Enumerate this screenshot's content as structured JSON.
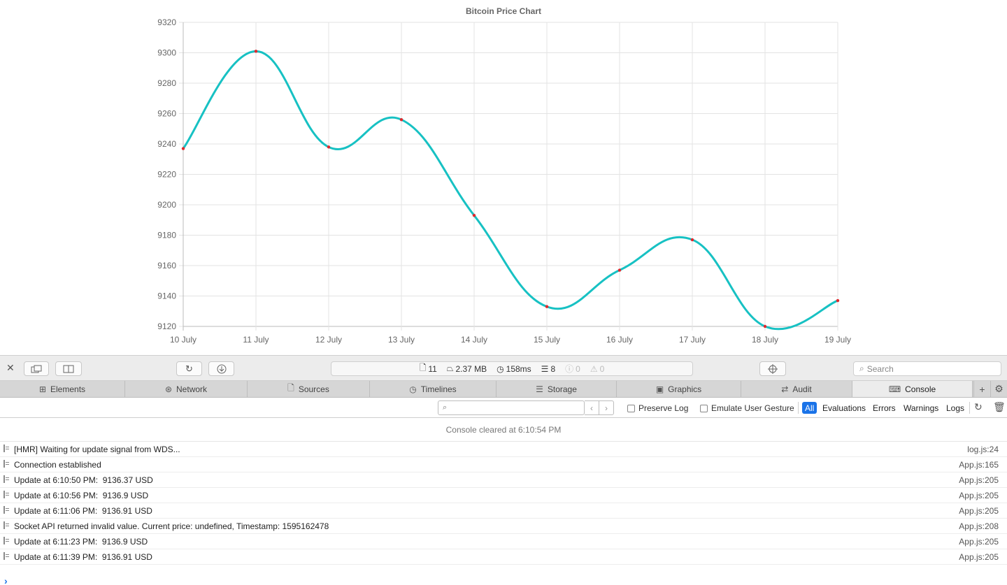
{
  "chart_data": {
    "type": "line",
    "title": "Bitcoin Price Chart",
    "categories": [
      "10 July",
      "11 July",
      "12 July",
      "13 July",
      "14 July",
      "15 July",
      "16 July",
      "17 July",
      "18 July",
      "19 July"
    ],
    "series": [
      {
        "values": [
          9237,
          9301,
          9238,
          9256,
          9193,
          9133,
          9157,
          9177,
          9120,
          9137
        ]
      }
    ],
    "ylim": [
      9120,
      9320
    ],
    "yticks": [
      9120,
      9140,
      9160,
      9180,
      9200,
      9220,
      9240,
      9260,
      9280,
      9300,
      9320
    ],
    "grid": true,
    "line_color": "#17c1c3",
    "point_color": "#e0282d"
  },
  "toolbar": {
    "status": {
      "resources": "11",
      "size": "2.37 MB",
      "time": "158ms",
      "logs": "8",
      "errors": "0",
      "warnings": "0"
    },
    "search_placeholder": "Search"
  },
  "tabs": [
    {
      "label": "Elements",
      "icon": "elements-icon"
    },
    {
      "label": "Network",
      "icon": "network-icon"
    },
    {
      "label": "Sources",
      "icon": "sources-icon"
    },
    {
      "label": "Timelines",
      "icon": "timelines-icon"
    },
    {
      "label": "Storage",
      "icon": "storage-icon"
    },
    {
      "label": "Graphics",
      "icon": "graphics-icon"
    },
    {
      "label": "Audit",
      "icon": "audit-icon"
    },
    {
      "label": "Console",
      "icon": "console-icon",
      "active": true
    }
  ],
  "filter": {
    "preserve_log": "Preserve Log",
    "emulate_gesture": "Emulate User Gesture",
    "levels": [
      "All",
      "Evaluations",
      "Errors",
      "Warnings",
      "Logs"
    ],
    "active_level": "All"
  },
  "console": {
    "cleared": "Console cleared at 6:10:54 PM",
    "messages": [
      {
        "text": "[HMR] Waiting for update signal from WDS...",
        "source": "log.js:24"
      },
      {
        "text": "Connection established",
        "source": "App.js:165"
      },
      {
        "text": "Update at 6:10:50 PM:  9136.37 USD",
        "source": "App.js:205"
      },
      {
        "text": "Update at 6:10:56 PM:  9136.9 USD",
        "source": "App.js:205"
      },
      {
        "text": "Update at 6:11:06 PM:  9136.91 USD",
        "source": "App.js:205"
      },
      {
        "text": "Socket API returned invalid value. Current price: undefined, Timestamp: 1595162478",
        "source": "App.js:208"
      },
      {
        "text": "Update at 6:11:23 PM:  9136.9 USD",
        "source": "App.js:205"
      },
      {
        "text": "Update at 6:11:39 PM:  9136.91 USD",
        "source": "App.js:205"
      }
    ]
  }
}
